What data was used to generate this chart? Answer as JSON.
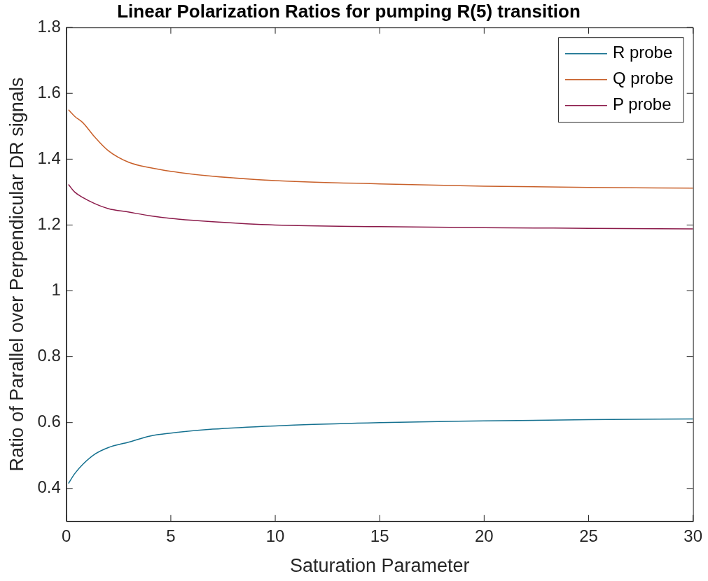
{
  "chart_data": {
    "type": "line",
    "title": "Linear Polarization Ratios for pumping R(5) transition",
    "xlabel": "Saturation Parameter",
    "ylabel": "Ratio of Parallel over Perpendicular DR signals",
    "xlim": [
      0,
      30
    ],
    "xticks": [
      0,
      5,
      10,
      15,
      20,
      25,
      30
    ],
    "ylim": [
      0.3,
      1.8
    ],
    "yticks": [
      0.4,
      0.6,
      0.8,
      1,
      1.2,
      1.4,
      1.6,
      1.8
    ],
    "x": [
      0.1,
      0.4,
      0.8,
      1.36,
      2,
      3,
      4,
      5,
      7,
      10,
      15,
      20,
      25,
      30
    ],
    "series": [
      {
        "name": "R probe",
        "color": "#14708f",
        "values": [
          0.415,
          0.445,
          0.474,
          0.504,
          0.524,
          0.541,
          0.559,
          0.568,
          0.58,
          0.59,
          0.6,
          0.605,
          0.609,
          0.611
        ]
      },
      {
        "name": "Q probe",
        "color": "#c8602a",
        "values": [
          1.55,
          1.53,
          1.51,
          1.467,
          1.426,
          1.39,
          1.374,
          1.363,
          1.348,
          1.335,
          1.325,
          1.318,
          1.314,
          1.312
        ]
      },
      {
        "name": "P probe",
        "color": "#8b1a4a",
        "values": [
          1.323,
          1.3,
          1.283,
          1.265,
          1.25,
          1.239,
          1.228,
          1.22,
          1.21,
          1.2,
          1.195,
          1.192,
          1.19,
          1.188
        ]
      }
    ],
    "legend": "top right",
    "grid": false,
    "marker": "none",
    "line_style": "solid"
  }
}
